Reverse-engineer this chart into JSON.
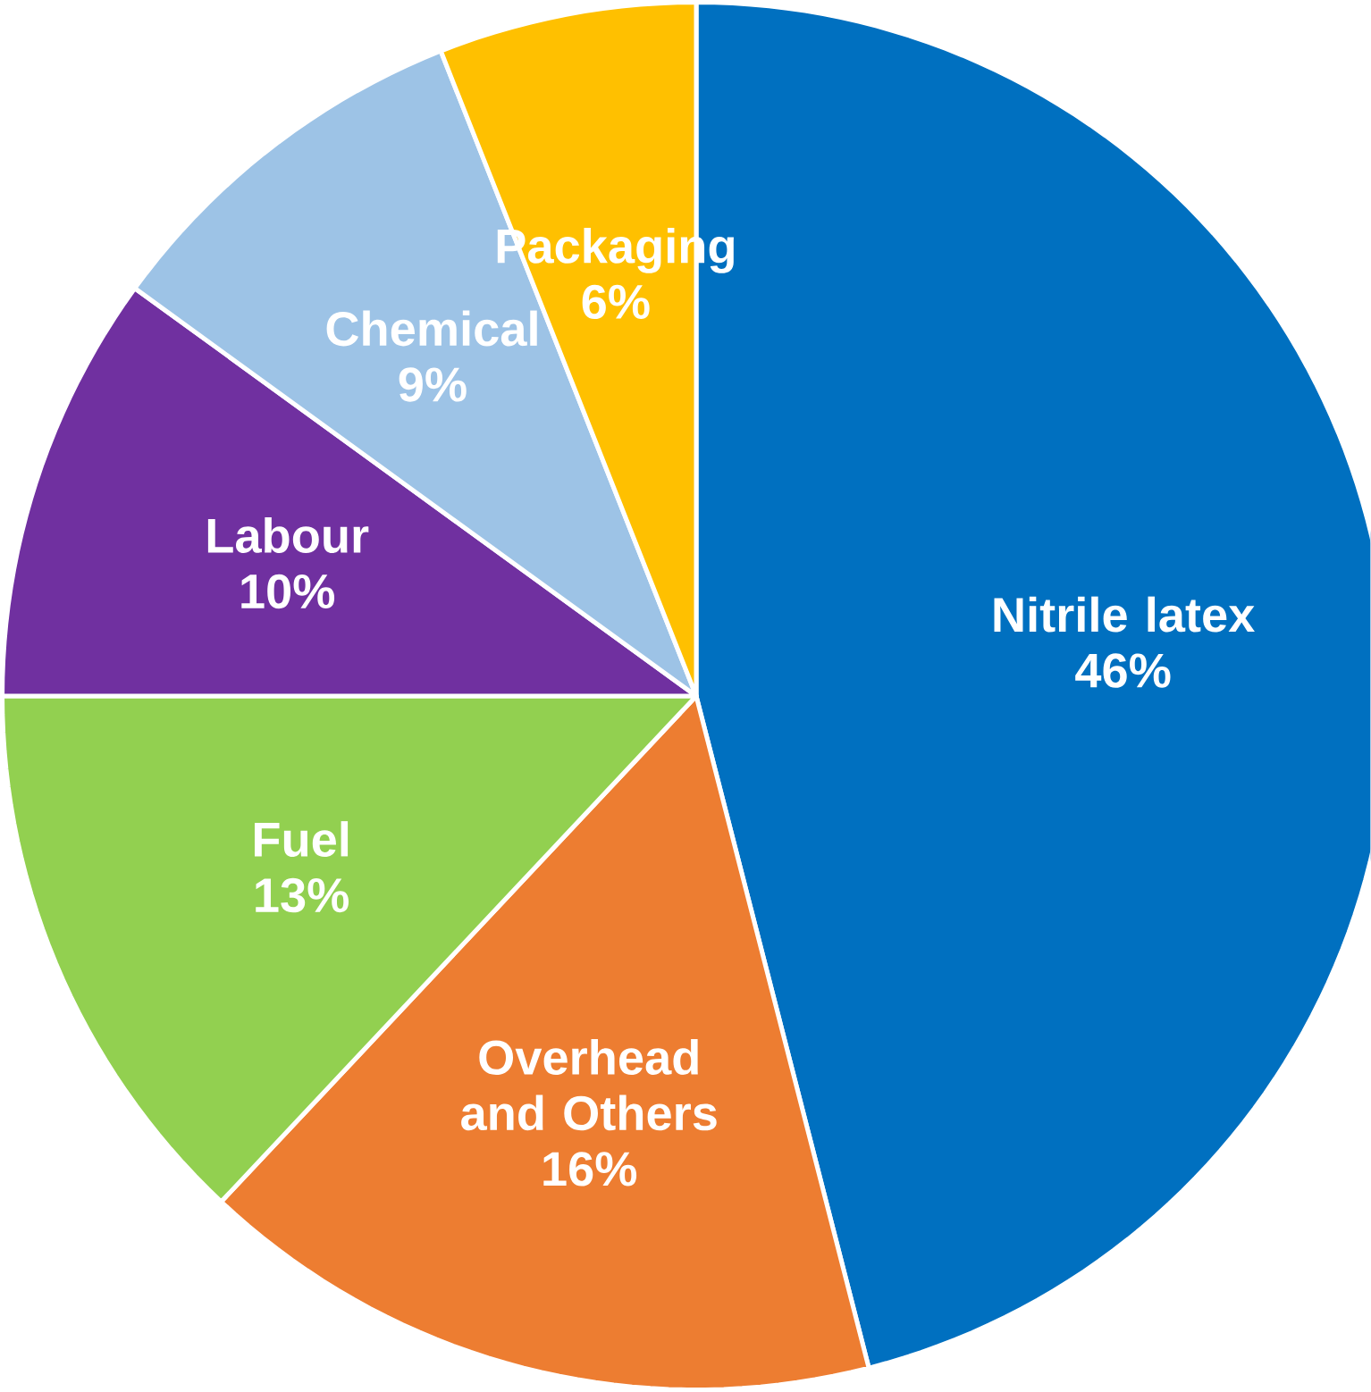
{
  "chart_data": {
    "type": "pie",
    "categories": [
      "Nitrile latex",
      "Overhead and Others",
      "Fuel",
      "Labour",
      "Chemical",
      "Packaging"
    ],
    "values": [
      46,
      16,
      13,
      10,
      9,
      6
    ],
    "value_labels": [
      "46%",
      "16%",
      "13%",
      "10%",
      "9%",
      "6%"
    ],
    "colors": [
      "#0070c0",
      "#ed7d31",
      "#92d050",
      "#7030a0",
      "#9dc3e6",
      "#ffc000"
    ]
  }
}
